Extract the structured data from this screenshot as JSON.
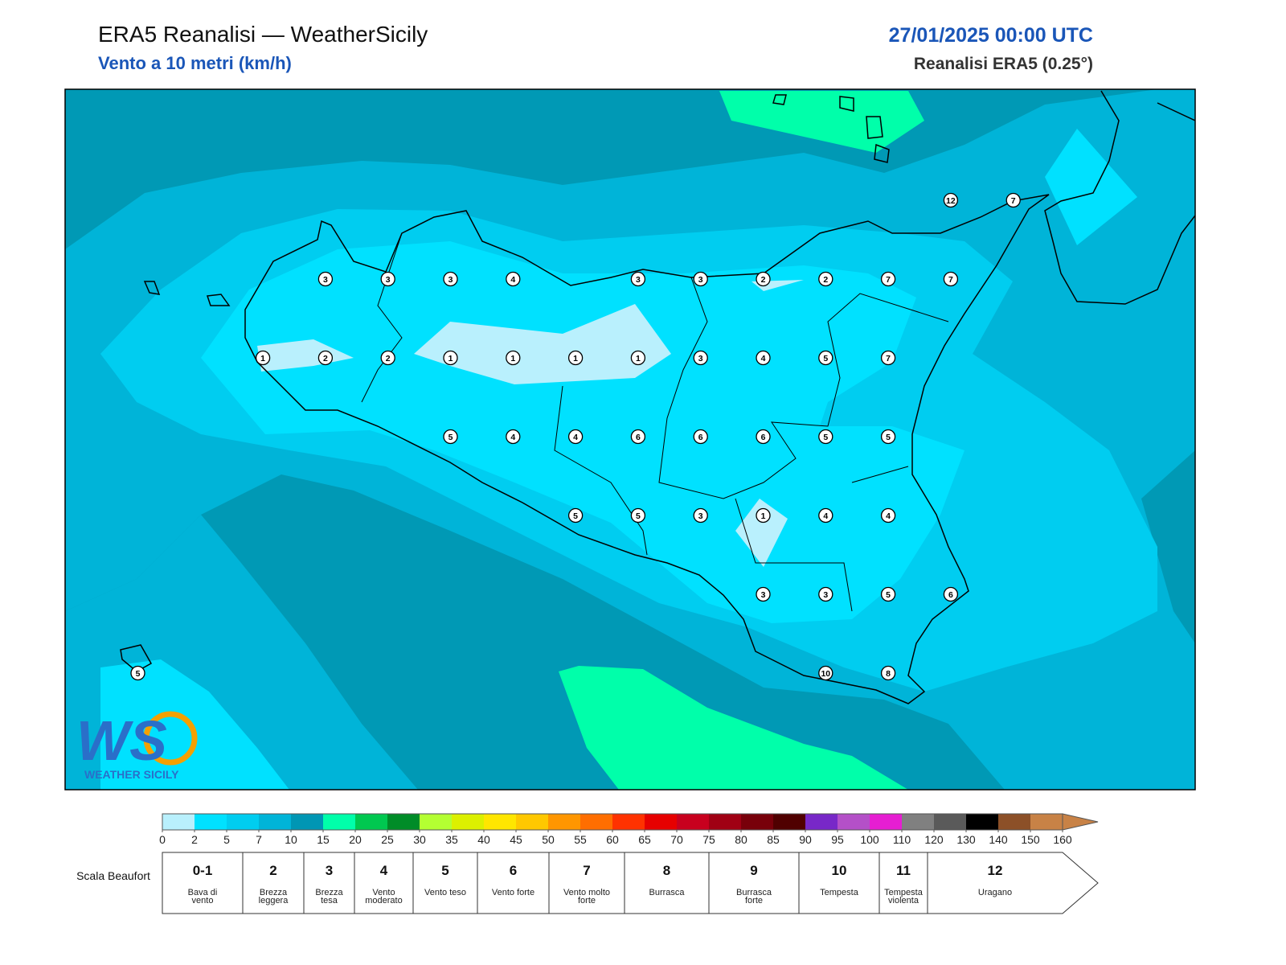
{
  "header": {
    "title": "ERA5 Reanalisi — WeatherSicily",
    "subtitle": "Vento a 10 metri (km/h)",
    "datetime": "27/01/2025 00:00 UTC",
    "source": "Reanalisi ERA5 (0.25°)"
  },
  "map": {
    "markers": [
      [
        null,
        null,
        null,
        null,
        null,
        null,
        null,
        null,
        null,
        null,
        null,
        null,
        null,
        12,
        7
      ],
      [
        null,
        null,
        null,
        3,
        3,
        3,
        4,
        null,
        3,
        3,
        2,
        2,
        7,
        7,
        null
      ],
      [
        null,
        null,
        1,
        2,
        2,
        1,
        1,
        1,
        1,
        3,
        4,
        5,
        7,
        null,
        null
      ],
      [
        null,
        null,
        null,
        null,
        null,
        5,
        4,
        4,
        6,
        6,
        6,
        5,
        5,
        null,
        null
      ],
      [
        null,
        null,
        null,
        null,
        null,
        null,
        null,
        5,
        5,
        3,
        1,
        4,
        4,
        null,
        null
      ],
      [
        null,
        null,
        null,
        null,
        null,
        null,
        null,
        null,
        null,
        null,
        3,
        3,
        5,
        6,
        null
      ],
      [
        5,
        null,
        null,
        null,
        null,
        null,
        null,
        null,
        null,
        null,
        null,
        10,
        8,
        null,
        null
      ]
    ]
  },
  "logo": {
    "mark": "WS",
    "text": "WEATHER SICILY"
  },
  "colorbar": {
    "ticks": [
      0,
      2,
      5,
      7,
      10,
      15,
      20,
      25,
      30,
      35,
      40,
      45,
      50,
      55,
      60,
      65,
      70,
      75,
      80,
      85,
      90,
      95,
      100,
      110,
      120,
      130,
      140,
      150,
      160
    ],
    "colors": [
      "#b9f0fd",
      "#00e1ff",
      "#00cdf0",
      "#00b4d8",
      "#0096b4",
      "#00ffaa",
      "#00c850",
      "#008c28",
      "#b4ff32",
      "#dcf000",
      "#ffe600",
      "#ffc800",
      "#ff9600",
      "#ff6e00",
      "#ff3200",
      "#e60000",
      "#c8001e",
      "#a00014",
      "#78000a",
      "#500000",
      "#7828c8",
      "#b450c8",
      "#e61ed2",
      "#808080",
      "#5a5a5a",
      "#000000",
      "#8c5028",
      "#c88246"
    ]
  },
  "beaufort": {
    "title": "Scala Beaufort",
    "classes": [
      {
        "force": "0-1",
        "label": "Bava di vento"
      },
      {
        "force": 2,
        "label": "Brezza leggera"
      },
      {
        "force": 3,
        "label": "Brezza tesa"
      },
      {
        "force": 4,
        "label": "Vento moderato"
      },
      {
        "force": 5,
        "label": "Vento teso"
      },
      {
        "force": 6,
        "label": "Vento forte"
      },
      {
        "force": 7,
        "label": "Vento molto forte"
      },
      {
        "force": 8,
        "label": "Burrasca"
      },
      {
        "force": 9,
        "label": "Burrasca forte"
      },
      {
        "force": 10,
        "label": "Tempesta"
      },
      {
        "force": 11,
        "label": "Tempesta violenta"
      },
      {
        "force": 12,
        "label": "Uragano"
      }
    ]
  }
}
